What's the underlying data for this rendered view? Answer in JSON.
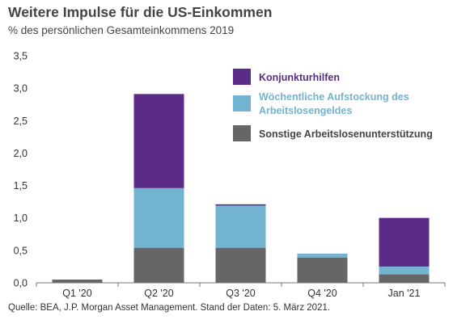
{
  "title": "Weitere Impulse für die US-Einkommen",
  "subtitle": "% des persönlichen Gesamteinkommens 2019",
  "source": "Quelle: BEA, J.P. Morgan Asset Management. Stand der Daten: 5. März 2021.",
  "chart_data": {
    "type": "bar",
    "stacked": true,
    "categories": [
      "Q1 '20",
      "Q2 '20",
      "Q3 '20",
      "Q4 '20",
      "Jan '21"
    ],
    "ylim": [
      0,
      3.5
    ],
    "yticks": [
      "0,0",
      "0,5",
      "1,0",
      "1,5",
      "2,0",
      "2,5",
      "3,0",
      "3,5"
    ],
    "ytick_values": [
      0,
      0.5,
      1.0,
      1.5,
      2.0,
      2.5,
      3.0,
      3.5
    ],
    "grid": false,
    "legend_position": "top-right",
    "series": [
      {
        "name": "Sonstige Arbeitslosenunterstützung",
        "color": "#666666",
        "legend_text_color": "#444444",
        "values": [
          0.05,
          0.54,
          0.54,
          0.39,
          0.13
        ]
      },
      {
        "name": "Wöchentliche Aufstockung des Arbeitslosengeldes",
        "legend_lines": [
          "Wöchentliche Aufstockung des",
          "Arbeitslosengeldes"
        ],
        "color": "#72b4d0",
        "legend_text_color": "#72b4d0",
        "values": [
          0.0,
          0.92,
          0.65,
          0.06,
          0.12
        ]
      },
      {
        "name": "Konjunkturhilfen",
        "color": "#5b2c87",
        "legend_text_color": "#5b2c87",
        "values": [
          0.0,
          1.45,
          0.02,
          0.0,
          0.75
        ]
      }
    ]
  }
}
